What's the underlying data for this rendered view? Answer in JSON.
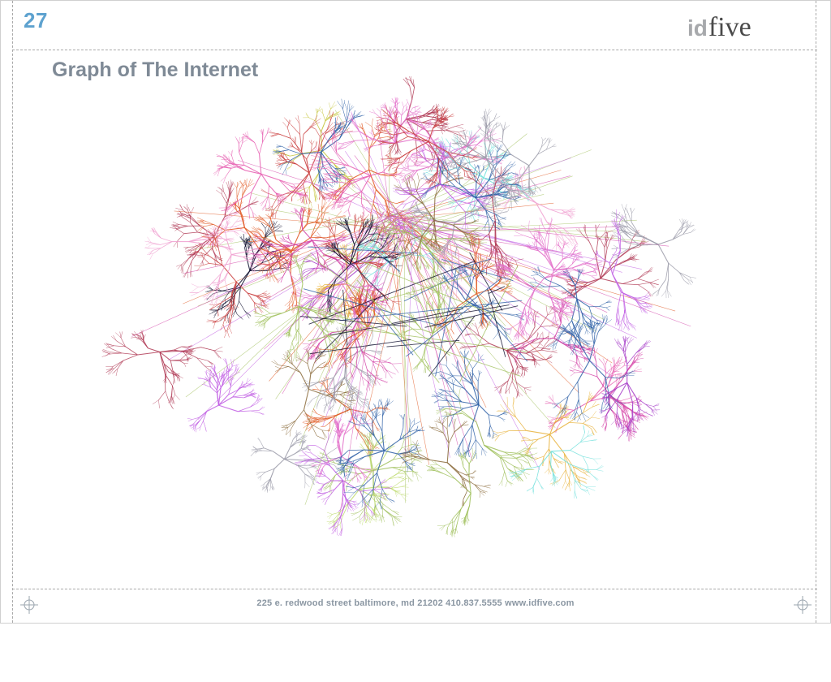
{
  "slide": {
    "page_number": "27",
    "title": "Graph of The Internet"
  },
  "logo": {
    "id_text": "id",
    "five_text": "five"
  },
  "footer": {
    "text": "225 e. redwood street  baltimore, md  21202   410.837.5555   www.idfive.com"
  },
  "graph": {
    "colors": [
      "#d23fa6",
      "#e0561f",
      "#c05ce3",
      "#9fbf5a",
      "#73e0dc",
      "#2d5fa6",
      "#c6c63c",
      "#b03a55",
      "#9a9aa8",
      "#e65db0",
      "#8a6a3a",
      "#0a0a2a",
      "#e36ec9",
      "#bcd96a",
      "#c93b3b",
      "#f0a0d0",
      "#a63cc8",
      "#e8b23a"
    ]
  }
}
